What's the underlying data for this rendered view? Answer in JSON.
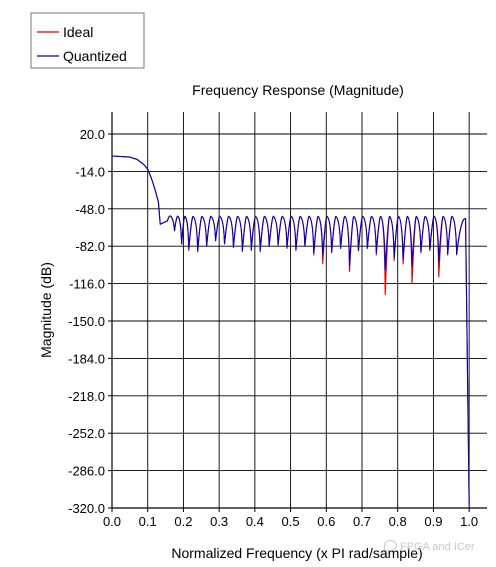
{
  "chart_data": {
    "type": "line",
    "title": "Frequency Response (Magnitude)",
    "xlabel": "Normalized Frequency (x PI rad/sample)",
    "ylabel": "Magnitude (dB)",
    "xlim": [
      0.0,
      1.05
    ],
    "ylim": [
      -320,
      40
    ],
    "xticks": [
      "0.0",
      "0.1",
      "0.2",
      "0.3",
      "0.4",
      "0.5",
      "0.6",
      "0.7",
      "0.8",
      "0.9",
      "1.0"
    ],
    "yticks": [
      "20.0",
      "-14.0",
      "-48.0",
      "-82.0",
      "-116.0",
      "-150.0",
      "-184.0",
      "-218.0",
      "-252.0",
      "-286.0",
      "-320.0"
    ],
    "grid": true,
    "legend_position": "top-left",
    "passband": {
      "x": [
        0.0,
        0.05,
        0.07,
        0.09,
        0.1,
        0.11,
        0.12,
        0.13,
        0.135
      ],
      "y": [
        0.0,
        -1,
        -3,
        -8,
        -12,
        -20,
        -30,
        -42,
        -62
      ]
    },
    "series": [
      {
        "name": "Ideal",
        "color": "#e00000",
        "lobe_peak": -55,
        "nulls": [
          {
            "x": 0.155,
            "y": -59
          },
          {
            "x": 0.175,
            "y": -68
          },
          {
            "x": 0.195,
            "y": -80
          },
          {
            "x": 0.215,
            "y": -86
          },
          {
            "x": 0.24,
            "y": -87
          },
          {
            "x": 0.265,
            "y": -82
          },
          {
            "x": 0.29,
            "y": -77
          },
          {
            "x": 0.315,
            "y": -80
          },
          {
            "x": 0.34,
            "y": -83
          },
          {
            "x": 0.365,
            "y": -87
          },
          {
            "x": 0.39,
            "y": -86
          },
          {
            "x": 0.415,
            "y": -87
          },
          {
            "x": 0.44,
            "y": -82
          },
          {
            "x": 0.465,
            "y": -81
          },
          {
            "x": 0.49,
            "y": -84
          },
          {
            "x": 0.515,
            "y": -86
          },
          {
            "x": 0.54,
            "y": -82
          },
          {
            "x": 0.565,
            "y": -90
          },
          {
            "x": 0.59,
            "y": -98
          },
          {
            "x": 0.615,
            "y": -88
          },
          {
            "x": 0.64,
            "y": -84
          },
          {
            "x": 0.665,
            "y": -105
          },
          {
            "x": 0.69,
            "y": -86
          },
          {
            "x": 0.715,
            "y": -84
          },
          {
            "x": 0.74,
            "y": -90
          },
          {
            "x": 0.765,
            "y": -126
          },
          {
            "x": 0.79,
            "y": -95
          },
          {
            "x": 0.815,
            "y": -98
          },
          {
            "x": 0.84,
            "y": -116
          },
          {
            "x": 0.865,
            "y": -88
          },
          {
            "x": 0.89,
            "y": -86
          },
          {
            "x": 0.915,
            "y": -110
          },
          {
            "x": 0.94,
            "y": -90
          },
          {
            "x": 0.965,
            "y": -90
          }
        ],
        "end": {
          "x": 1.0,
          "y": -315
        }
      },
      {
        "name": "Quantized",
        "color": "#0000c8",
        "lobe_peak": -55,
        "nulls": [
          {
            "x": 0.155,
            "y": -59
          },
          {
            "x": 0.175,
            "y": -68
          },
          {
            "x": 0.195,
            "y": -80
          },
          {
            "x": 0.215,
            "y": -84
          },
          {
            "x": 0.24,
            "y": -86
          },
          {
            "x": 0.265,
            "y": -82
          },
          {
            "x": 0.29,
            "y": -77
          },
          {
            "x": 0.315,
            "y": -80
          },
          {
            "x": 0.34,
            "y": -83
          },
          {
            "x": 0.365,
            "y": -86
          },
          {
            "x": 0.39,
            "y": -85
          },
          {
            "x": 0.415,
            "y": -86
          },
          {
            "x": 0.44,
            "y": -82
          },
          {
            "x": 0.465,
            "y": -81
          },
          {
            "x": 0.49,
            "y": -83
          },
          {
            "x": 0.515,
            "y": -85
          },
          {
            "x": 0.54,
            "y": -82
          },
          {
            "x": 0.565,
            "y": -88
          },
          {
            "x": 0.59,
            "y": -90
          },
          {
            "x": 0.615,
            "y": -87
          },
          {
            "x": 0.64,
            "y": -84
          },
          {
            "x": 0.665,
            "y": -99
          },
          {
            "x": 0.69,
            "y": -86
          },
          {
            "x": 0.715,
            "y": -84
          },
          {
            "x": 0.74,
            "y": -88
          },
          {
            "x": 0.765,
            "y": -104
          },
          {
            "x": 0.79,
            "y": -92
          },
          {
            "x": 0.815,
            "y": -94
          },
          {
            "x": 0.84,
            "y": -100
          },
          {
            "x": 0.865,
            "y": -87
          },
          {
            "x": 0.89,
            "y": -85
          },
          {
            "x": 0.915,
            "y": -96
          },
          {
            "x": 0.94,
            "y": -89
          },
          {
            "x": 0.965,
            "y": -89
          }
        ],
        "end": {
          "x": 1.0,
          "y": -318
        }
      }
    ]
  },
  "watermark": "FPGA and ICer"
}
